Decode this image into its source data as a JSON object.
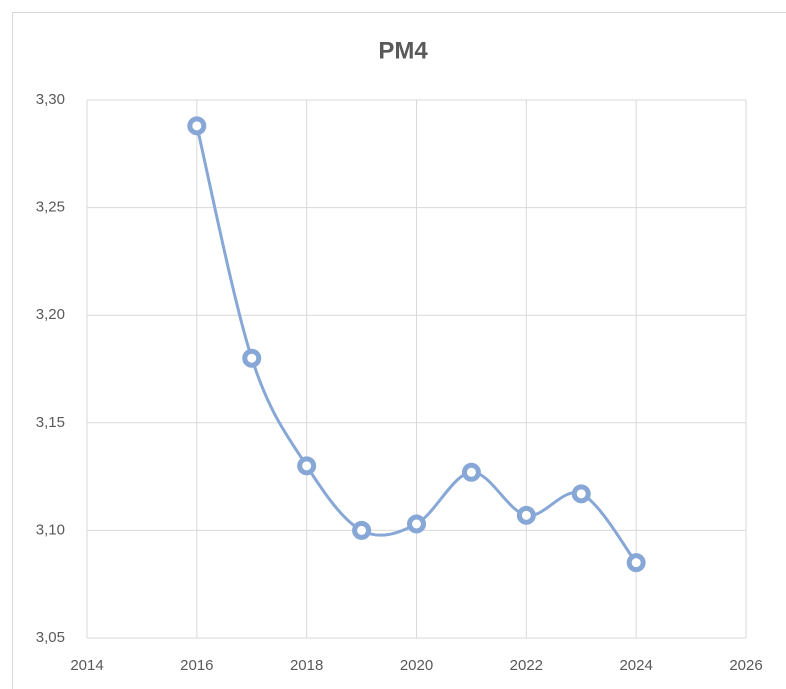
{
  "chart_data": {
    "type": "scatter",
    "title": "PM4",
    "x": [
      2016,
      2017,
      2018,
      2019,
      2020,
      2021,
      2022,
      2023,
      2024
    ],
    "series": [
      {
        "name": "PM4",
        "color": "#87a7d6",
        "values": [
          3.288,
          3.18,
          3.13,
          3.1,
          3.103,
          3.127,
          3.107,
          3.117,
          3.085
        ]
      }
    ],
    "smooth": true,
    "xlim": [
      2014,
      2026
    ],
    "xticks": [
      2014,
      2016,
      2018,
      2020,
      2022,
      2024,
      2026
    ],
    "ylim": [
      3.05,
      3.3
    ],
    "yticks": [
      {
        "value": 3.05,
        "label": "3,05"
      },
      {
        "value": 3.1,
        "label": "3,10"
      },
      {
        "value": 3.15,
        "label": "3,15"
      },
      {
        "value": 3.2,
        "label": "3,20"
      },
      {
        "value": 3.25,
        "label": "3,25"
      },
      {
        "value": 3.3,
        "label": "3,30"
      }
    ],
    "grid": true
  }
}
